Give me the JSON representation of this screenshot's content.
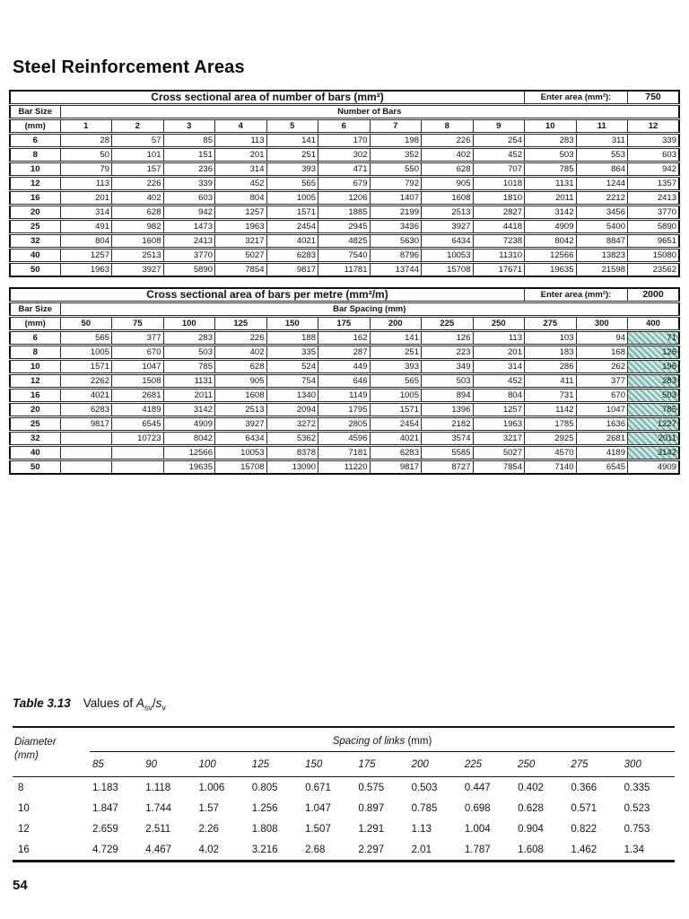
{
  "page": {
    "title": "Steel Reinforcement Areas",
    "page_number": "54"
  },
  "colors": {
    "hatch_bg": "#cbe9e4",
    "hatch_stripe": "#7fb2ac"
  },
  "bars_table": {
    "title": "Cross sectional area of number of bars (mm²)",
    "enter_area_label": "Enter area (mm²):",
    "enter_area_value": "750",
    "row_header": "Bar Size",
    "row_header_unit": "(mm)",
    "column_group": "Number of Bars",
    "columns": [
      "1",
      "2",
      "3",
      "4",
      "5",
      "6",
      "7",
      "8",
      "9",
      "10",
      "11",
      "12"
    ],
    "rows": [
      {
        "label": "6",
        "values": [
          "28",
          "57",
          "85",
          "113",
          "141",
          "170",
          "198",
          "226",
          "254",
          "283",
          "311",
          "339"
        ]
      },
      {
        "label": "8",
        "values": [
          "50",
          "101",
          "151",
          "201",
          "251",
          "302",
          "352",
          "402",
          "452",
          "503",
          "553",
          "603"
        ]
      },
      {
        "label": "10",
        "values": [
          "79",
          "157",
          "236",
          "314",
          "393",
          "471",
          "550",
          "628",
          "707",
          "785",
          "864",
          "942"
        ]
      },
      {
        "label": "12",
        "values": [
          "113",
          "226",
          "339",
          "452",
          "565",
          "679",
          "792",
          "905",
          "1018",
          "1131",
          "1244",
          "1357"
        ]
      },
      {
        "label": "16",
        "values": [
          "201",
          "402",
          "603",
          "804",
          "1005",
          "1206",
          "1407",
          "1608",
          "1810",
          "2011",
          "2212",
          "2413"
        ]
      },
      {
        "label": "20",
        "values": [
          "314",
          "628",
          "942",
          "1257",
          "1571",
          "1885",
          "2199",
          "2513",
          "2827",
          "3142",
          "3456",
          "3770"
        ]
      },
      {
        "label": "25",
        "values": [
          "491",
          "982",
          "1473",
          "1963",
          "2454",
          "2945",
          "3436",
          "3927",
          "4418",
          "4909",
          "5400",
          "5890"
        ]
      },
      {
        "label": "32",
        "values": [
          "804",
          "1608",
          "2413",
          "3217",
          "4021",
          "4825",
          "5630",
          "6434",
          "7238",
          "8042",
          "8847",
          "9651"
        ]
      },
      {
        "label": "40",
        "values": [
          "1257",
          "2513",
          "3770",
          "5027",
          "6283",
          "7540",
          "8796",
          "10053",
          "11310",
          "12566",
          "13823",
          "15080"
        ]
      },
      {
        "label": "50",
        "values": [
          "1963",
          "3927",
          "5890",
          "7854",
          "9817",
          "11781",
          "13744",
          "15708",
          "17671",
          "19635",
          "21598",
          "23562"
        ]
      }
    ]
  },
  "spacing_table": {
    "title": "Cross sectional area of bars per metre (mm²/m)",
    "enter_area_label": "Enter area (mm²):",
    "enter_area_value": "2000",
    "row_header": "Bar Size",
    "row_header_unit": "(mm)",
    "column_group": "Bar Spacing (mm)",
    "columns": [
      "50",
      "75",
      "100",
      "125",
      "150",
      "175",
      "200",
      "225",
      "250",
      "275",
      "300",
      "400"
    ],
    "rows": [
      {
        "label": "6",
        "hatch_last": true,
        "values": [
          "565",
          "377",
          "283",
          "226",
          "188",
          "162",
          "141",
          "126",
          "113",
          "103",
          "94",
          "71"
        ]
      },
      {
        "label": "8",
        "hatch_last": true,
        "values": [
          "1005",
          "670",
          "503",
          "402",
          "335",
          "287",
          "251",
          "223",
          "201",
          "183",
          "168",
          "126"
        ]
      },
      {
        "label": "10",
        "hatch_last": true,
        "values": [
          "1571",
          "1047",
          "785",
          "628",
          "524",
          "449",
          "393",
          "349",
          "314",
          "286",
          "262",
          "196"
        ]
      },
      {
        "label": "12",
        "hatch_last": true,
        "values": [
          "2262",
          "1508",
          "1131",
          "905",
          "754",
          "646",
          "565",
          "503",
          "452",
          "411",
          "377",
          "283"
        ]
      },
      {
        "label": "16",
        "hatch_last": true,
        "values": [
          "4021",
          "2681",
          "2011",
          "1608",
          "1340",
          "1149",
          "1005",
          "894",
          "804",
          "731",
          "670",
          "503"
        ]
      },
      {
        "label": "20",
        "hatch_last": true,
        "values": [
          "6283",
          "4189",
          "3142",
          "2513",
          "2094",
          "1795",
          "1571",
          "1396",
          "1257",
          "1142",
          "1047",
          "785"
        ]
      },
      {
        "label": "25",
        "hatch_last": true,
        "values": [
          "9817",
          "6545",
          "4909",
          "3927",
          "3272",
          "2805",
          "2454",
          "2182",
          "1963",
          "1785",
          "1636",
          "1227"
        ]
      },
      {
        "label": "32",
        "hatch_last": true,
        "values": [
          "",
          "10723",
          "8042",
          "6434",
          "5362",
          "4596",
          "4021",
          "3574",
          "3217",
          "2925",
          "2681",
          "2011"
        ]
      },
      {
        "label": "40",
        "hatch_last": true,
        "values": [
          "",
          "",
          "12566",
          "10053",
          "8378",
          "7181",
          "6283",
          "5585",
          "5027",
          "4570",
          "4189",
          "3142"
        ]
      },
      {
        "label": "50",
        "hatch_last": false,
        "values": [
          "",
          "",
          "19635",
          "15708",
          "13090",
          "11220",
          "9817",
          "8727",
          "7854",
          "7140",
          "6545",
          "4909"
        ]
      }
    ]
  },
  "links_table": {
    "caption_label": "Table 3.13",
    "caption_prefix": "Values of ",
    "formula_var1": "A",
    "formula_sub1": "sv",
    "formula_slash": "/",
    "formula_var2": "s",
    "formula_sub2": "v",
    "diameter_line1": "Diameter",
    "diameter_line2": "(mm)",
    "column_group": "Spacing of links",
    "column_group_unit": " (mm)",
    "columns": [
      "85",
      "90",
      "100",
      "125",
      "150",
      "175",
      "200",
      "225",
      "250",
      "275",
      "300"
    ],
    "rows": [
      {
        "label": "8",
        "values": [
          "1.183",
          "1.118",
          "1.006",
          "0.805",
          "0.671",
          "0.575",
          "0.503",
          "0.447",
          "0.402",
          "0.366",
          "0.335"
        ]
      },
      {
        "label": "10",
        "values": [
          "1.847",
          "1.744",
          "1.57",
          "1.256",
          "1.047",
          "0.897",
          "0.785",
          "0.698",
          "0.628",
          "0.571",
          "0.523"
        ]
      },
      {
        "label": "12",
        "values": [
          "2.659",
          "2.511",
          "2.26",
          "1.808",
          "1.507",
          "1.291",
          "1.13",
          "1.004",
          "0.904",
          "0.822",
          "0.753"
        ]
      },
      {
        "label": "16",
        "values": [
          "4.729",
          "4.467",
          "4.02",
          "3.216",
          "2.68",
          "2.297",
          "2.01",
          "1.787",
          "1.608",
          "1.462",
          "1.34"
        ]
      }
    ]
  }
}
